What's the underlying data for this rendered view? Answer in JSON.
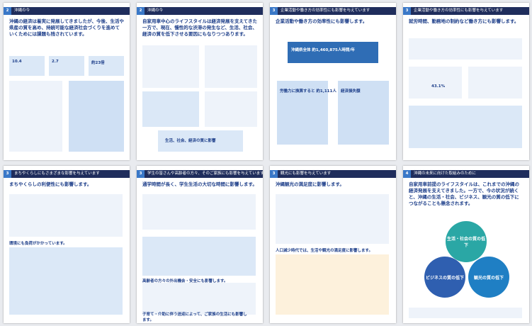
{
  "pages": [
    {
      "section": "2",
      "header": "沖縄の今",
      "headline": "沖縄の経済は着実に発展してきましたが、今後、生活や県産の質を高め、持続可能な経済社会づくりを進めていくためには課題も残されています。",
      "items": [
        "10.4",
        "2.7",
        "約23倍"
      ]
    },
    {
      "section": "2",
      "header": "沖縄の今",
      "headline": "自家用車中心のライフスタイルは経済発展を支えてきた一方で、現在、慢性的な渋滞の発生など、生活、社会、経済の質を低下させる要因にもなりつつあります。",
      "items": [
        "生活、社会、経済の質に影響"
      ]
    },
    {
      "section": "3",
      "header": "企業活動や働き方の効率性にも影響を与えています",
      "headline": "企業活動や働き方の効率性にも影響します。",
      "items": [
        "沖縄県全体 約1,460,875人時間/年",
        "労働力に換算すると 約1,111人",
        "経済損失額"
      ]
    },
    {
      "section": "3",
      "header": "企業活動や働き方の効率性にも影響を与えています",
      "headline": "就労時間、勤務地の制約など働き方にも影響します。",
      "items": [
        "43.1%"
      ]
    },
    {
      "section": "3",
      "header": "まちやくらしにもさまざまな影響を与えています",
      "headline": "まちやくらしの利便性にも影響します。",
      "items": [
        "環境にも負荷がかかっています。"
      ]
    },
    {
      "section": "3",
      "header": "学生の皆さんや高齢者の方々、そのご家族にも影響を与えています",
      "headline": "通学時間が長く、学生生活の大切な時間に影響します。",
      "items": [
        "高齢者の方々の外出機会・安全にも影響します。",
        "子育て・介助に伴う送迎によって、ご家族の生活にも影響します。"
      ]
    },
    {
      "section": "3",
      "header": "観光にも影響を与えています",
      "headline": "沖縄観光の満足度に影響します。",
      "items": [
        "人口減少時代では、生活や観光の満足度に影響します。"
      ]
    },
    {
      "section": "4",
      "header": "沖縄の未来に向けた取組みのために",
      "headline": "自家用車前提のライフスタイルは、これまでの沖縄の経済発展を支えてきました。一方で、今の状況が続くと、沖縄の生活・社会、ビジネス、観光の質の低下につながることも懸念されます。",
      "items": [
        "生活・社会の質の低下",
        "ビジネスの質の低下",
        "観光の質の低下"
      ]
    }
  ]
}
